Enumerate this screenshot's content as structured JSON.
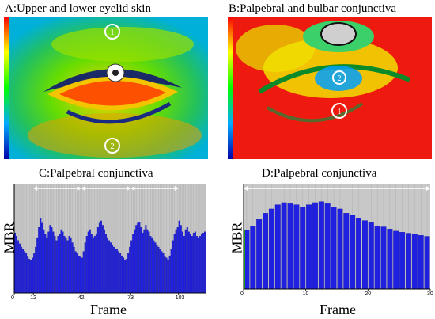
{
  "panel_a": {
    "title": "A:Upper and lower eyelid skin",
    "markers": [
      "1",
      "2"
    ]
  },
  "panel_b": {
    "title": "B:Palpebral and bulbar conjunctiva",
    "markers": [
      "1",
      "2"
    ]
  },
  "chart_data": [
    {
      "type": "bar",
      "title": "C:Palpebral conjunctiva",
      "xlabel": "Frame",
      "ylabel": "MBR",
      "x_ticks": [
        "0",
        "12",
        "42",
        "73",
        "103"
      ],
      "xlim": [
        0,
        120
      ],
      "ylim": [
        0,
        1
      ],
      "values": [
        0.55,
        0.52,
        0.48,
        0.45,
        0.42,
        0.4,
        0.38,
        0.36,
        0.33,
        0.31,
        0.3,
        0.32,
        0.36,
        0.42,
        0.5,
        0.6,
        0.68,
        0.64,
        0.58,
        0.54,
        0.5,
        0.56,
        0.62,
        0.6,
        0.56,
        0.52,
        0.48,
        0.52,
        0.54,
        0.58,
        0.56,
        0.52,
        0.5,
        0.48,
        0.52,
        0.5,
        0.46,
        0.42,
        0.38,
        0.36,
        0.34,
        0.33,
        0.32,
        0.38,
        0.46,
        0.52,
        0.56,
        0.58,
        0.54,
        0.5,
        0.52,
        0.54,
        0.6,
        0.64,
        0.66,
        0.62,
        0.58,
        0.54,
        0.5,
        0.48,
        0.46,
        0.44,
        0.42,
        0.4,
        0.4,
        0.38,
        0.36,
        0.34,
        0.32,
        0.3,
        0.31,
        0.36,
        0.42,
        0.48,
        0.54,
        0.58,
        0.62,
        0.64,
        0.65,
        0.6,
        0.55,
        0.58,
        0.62,
        0.58,
        0.56,
        0.52,
        0.5,
        0.48,
        0.46,
        0.44,
        0.42,
        0.4,
        0.38,
        0.36,
        0.33,
        0.32,
        0.3,
        0.34,
        0.4,
        0.48,
        0.54,
        0.58,
        0.6,
        0.66,
        0.62,
        0.56,
        0.52,
        0.58,
        0.6,
        0.56,
        0.54,
        0.52,
        0.55,
        0.56,
        0.52,
        0.5,
        0.52,
        0.54,
        0.55,
        0.56
      ],
      "cycle_markers": [
        12,
        42,
        73,
        103
      ]
    },
    {
      "type": "bar",
      "title": "D:Palpebral conjunctiva",
      "xlabel": "Frame",
      "ylabel": "MBR",
      "x_ticks": [
        "0",
        "10",
        "20",
        "30"
      ],
      "xlim": [
        0,
        30
      ],
      "ylim": [
        0,
        1
      ],
      "x": [
        0,
        1,
        2,
        3,
        4,
        5,
        6,
        7,
        8,
        9,
        10,
        11,
        12,
        13,
        14,
        15,
        16,
        17,
        18,
        19,
        20,
        21,
        22,
        23,
        24,
        25,
        26,
        27,
        28,
        29
      ],
      "values": [
        0.56,
        0.6,
        0.66,
        0.72,
        0.76,
        0.8,
        0.82,
        0.81,
        0.8,
        0.78,
        0.8,
        0.82,
        0.83,
        0.81,
        0.78,
        0.76,
        0.72,
        0.7,
        0.67,
        0.65,
        0.63,
        0.6,
        0.59,
        0.57,
        0.55,
        0.54,
        0.53,
        0.52,
        0.51,
        0.5
      ]
    }
  ]
}
